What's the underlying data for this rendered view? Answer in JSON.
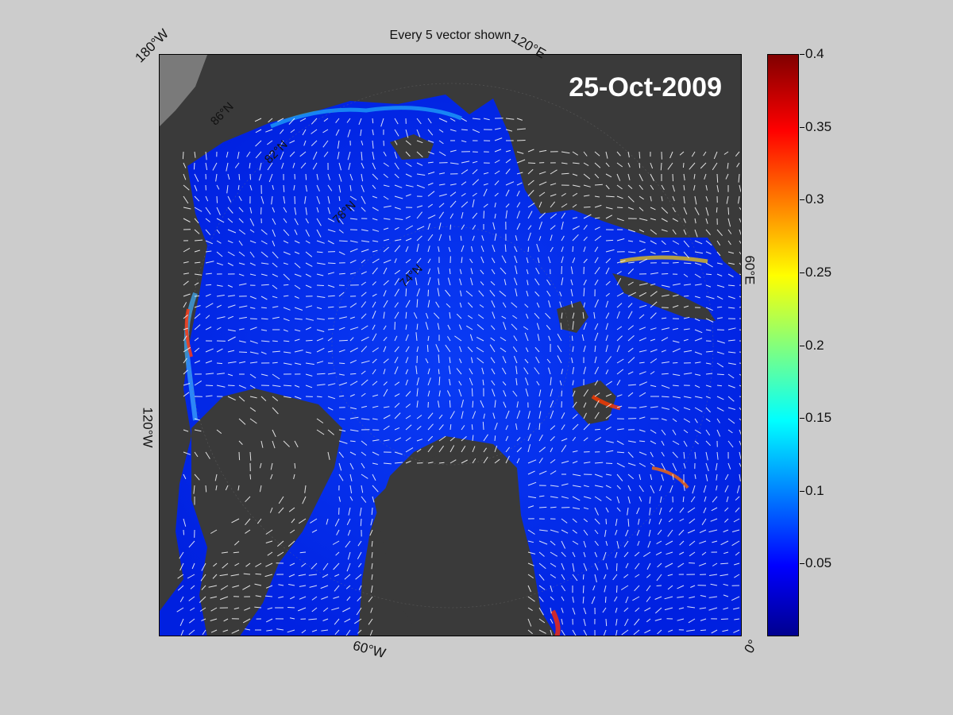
{
  "title": "Every 5 vector shown",
  "date": "25-Oct-2009",
  "map_labels": {
    "lon_180w": "180°W",
    "lon_120e": "120°E",
    "lon_60e": "60°E",
    "lon_120w": "120°W",
    "lon_60w": "60°W",
    "lon_0": "0°",
    "lat_86n": "86°N",
    "lat_82n": "82°N",
    "lat_78n": "78°N",
    "lat_74n": "74°N"
  },
  "colorbar": {
    "min": 0,
    "max": 0.4,
    "colormap": "jet",
    "ticks": [
      "0.4",
      "0.35",
      "0.3",
      "0.25",
      "0.2",
      "0.15",
      "0.1",
      "0.05"
    ]
  },
  "colors": {
    "land": "#3a3a3a",
    "ocean_highlight": "#0044ff",
    "vector": "#ffffff",
    "figure_bg": "#cccccc"
  }
}
